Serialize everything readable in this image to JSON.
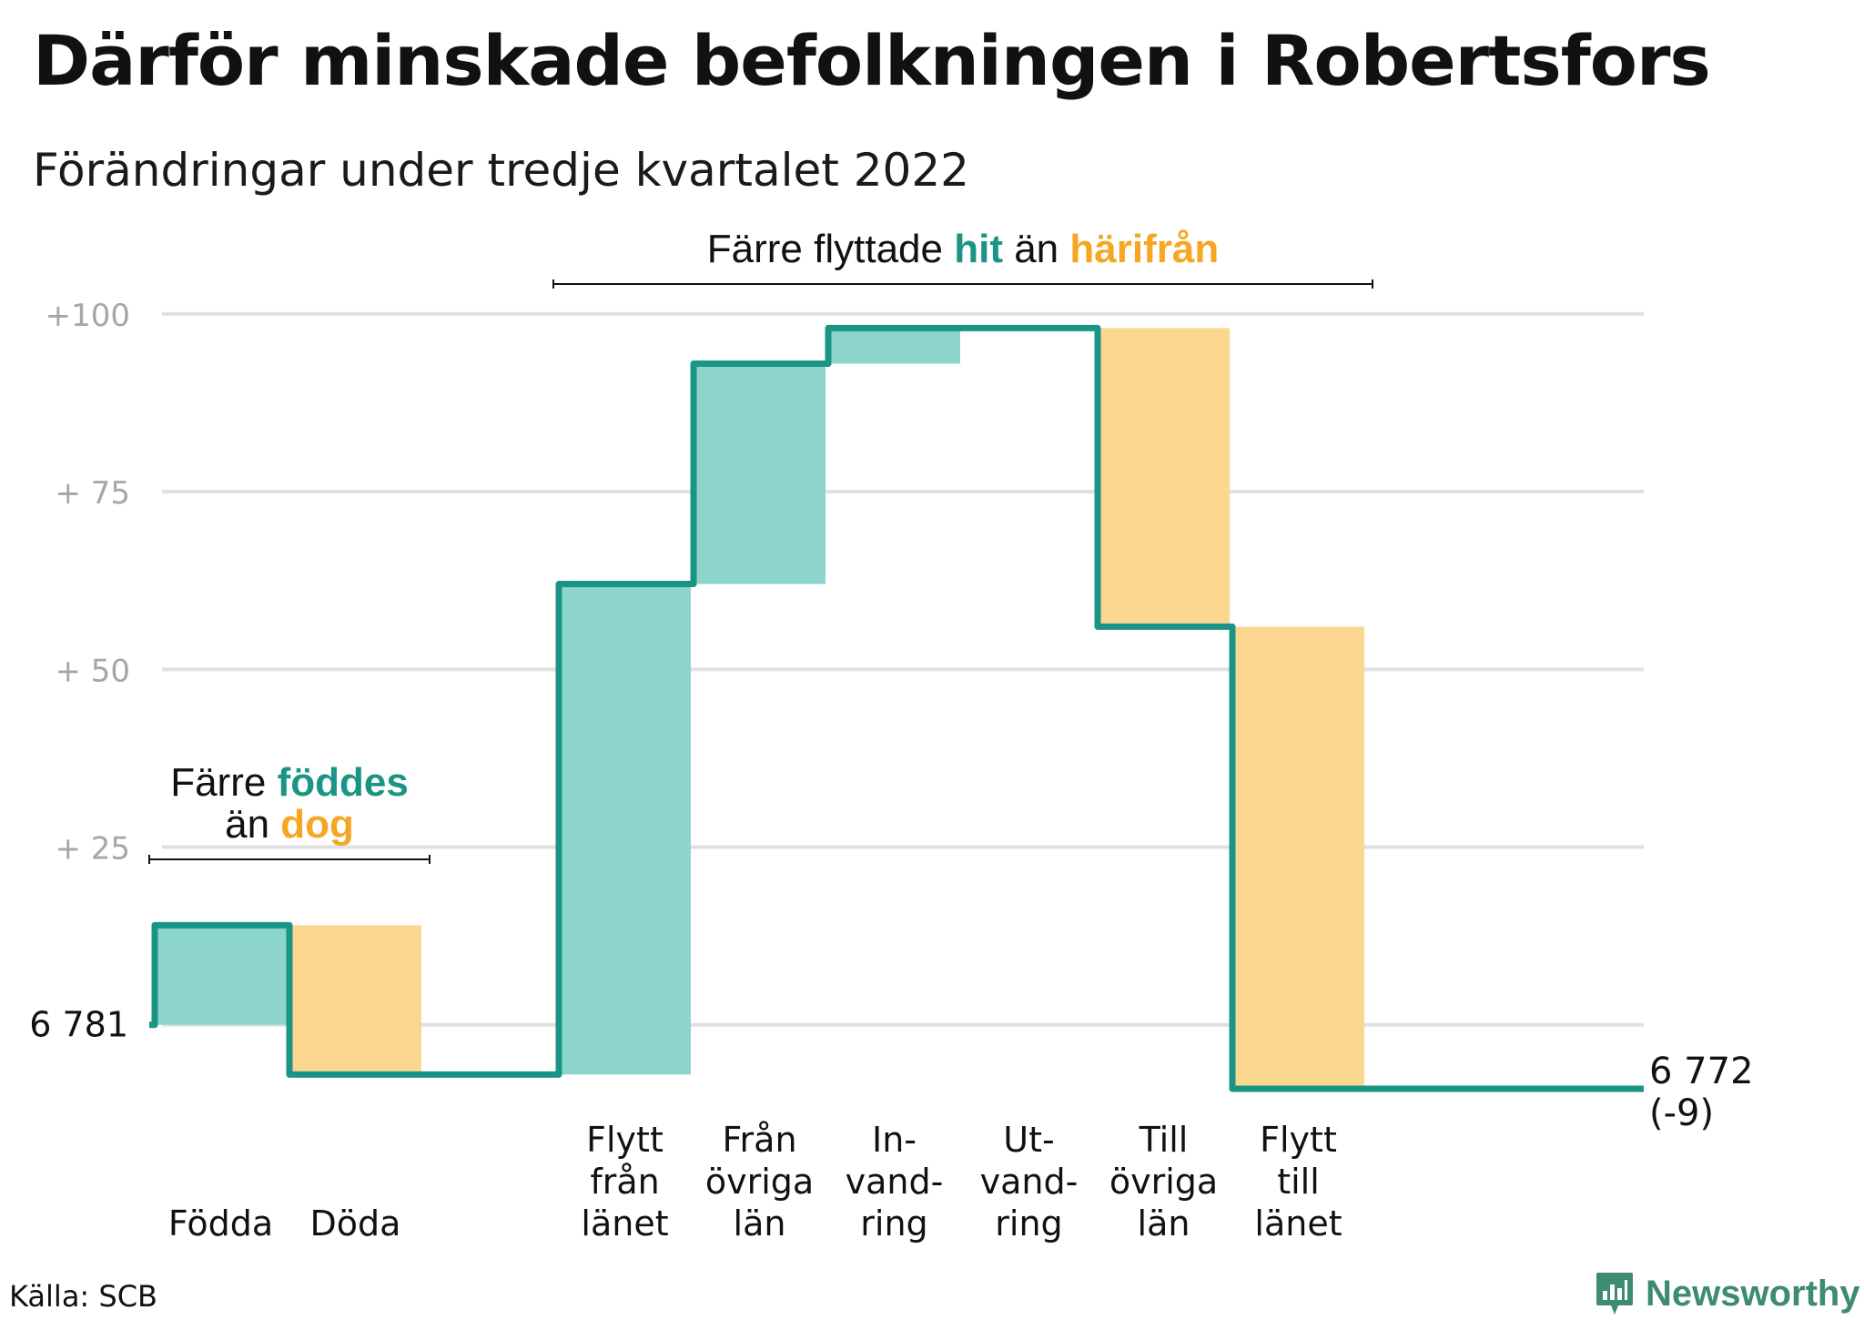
{
  "title": "Därför minskade befolkningen i Robertsfors",
  "subtitle": "Förändringar under tredje kvartalet 2022",
  "source": "Källa: SCB",
  "brand": "Newsworthy",
  "colors": {
    "increase": "#8dd5cc",
    "decrease": "#fad68e",
    "line": "#1a9585",
    "accent_increase": "#1a9585",
    "accent_decrease": "#f5a623",
    "grid": "#e0e0e0",
    "tick": "#a6a6a6"
  },
  "chart_data": {
    "type": "waterfall",
    "title": "Därför minskade befolkningen i Robertsfors",
    "subtitle": "Förändringar under tredje kvartalet 2022",
    "start_value": 6781,
    "start_label": "6 781",
    "end_value": 6772,
    "end_label": [
      "6 772",
      "(-9)"
    ],
    "ylim": [
      -9,
      101
    ],
    "yticks": [
      {
        "value": 25,
        "label": "+ 25"
      },
      {
        "value": 50,
        "label": "+ 50"
      },
      {
        "value": 75,
        "label": "+ 75"
      },
      {
        "value": 100,
        "label": "+100"
      }
    ],
    "grid": true,
    "steps": [
      {
        "label": [
          "Födda"
        ],
        "change": 14,
        "kind": "increase"
      },
      {
        "label": [
          "Döda"
        ],
        "change": -21,
        "kind": "decrease"
      },
      {
        "label": [],
        "change": 0,
        "kind": "spacer"
      },
      {
        "label": [
          "Flytt",
          "från",
          "länet"
        ],
        "change": 69,
        "kind": "increase"
      },
      {
        "label": [
          "Från",
          "övriga",
          "län"
        ],
        "change": 31,
        "kind": "increase"
      },
      {
        "label": [
          "In-",
          "vand-",
          "ring"
        ],
        "change": 5,
        "kind": "increase"
      },
      {
        "label": [
          "Ut-",
          "vand-",
          "ring"
        ],
        "change": 0,
        "kind": "decrease"
      },
      {
        "label": [
          "Till",
          "övriga",
          "län"
        ],
        "change": -42,
        "kind": "decrease"
      },
      {
        "label": [
          "Flytt",
          "till",
          "länet"
        ],
        "change": -65,
        "kind": "decrease"
      }
    ],
    "annotations": [
      {
        "lines": [
          [
            {
              "text": "Färre ",
              "style": "plain"
            },
            {
              "text": "föddes",
              "style": "increase"
            }
          ],
          [
            {
              "text": "än ",
              "style": "plain"
            },
            {
              "text": "dog",
              "style": "decrease"
            }
          ]
        ],
        "span": [
          0,
          1
        ]
      },
      {
        "lines": [
          [
            {
              "text": "Färre flyttade ",
              "style": "plain"
            },
            {
              "text": "hit",
              "style": "increase"
            },
            {
              "text": " än ",
              "style": "plain"
            },
            {
              "text": "härifrån",
              "style": "decrease"
            }
          ]
        ],
        "span": [
          3,
          8
        ]
      }
    ]
  }
}
